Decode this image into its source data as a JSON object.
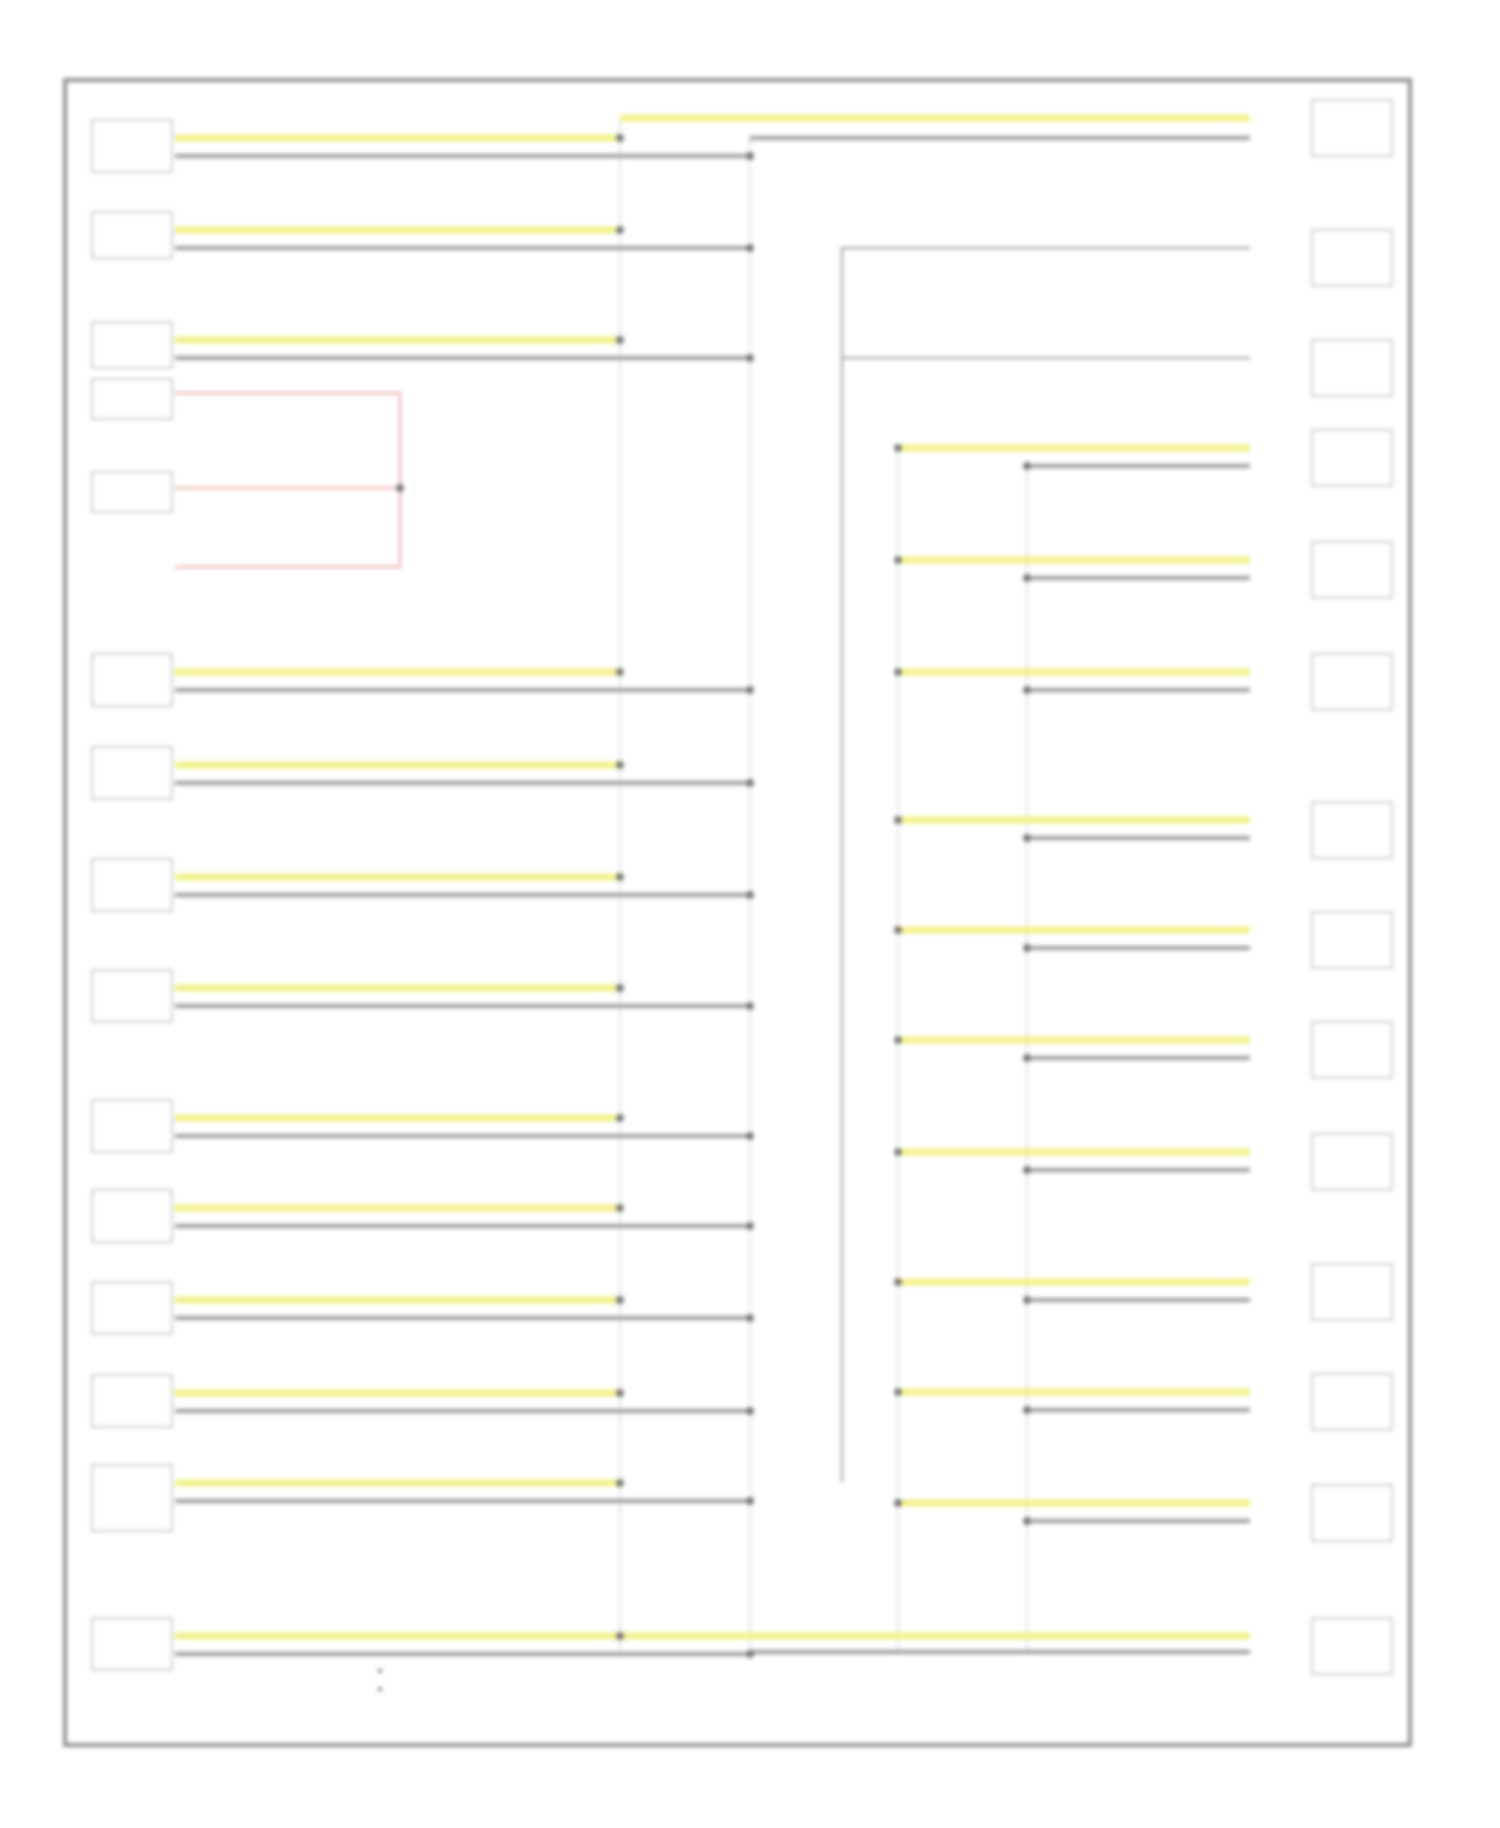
{
  "diagram": {
    "footer_code": "",
    "legend": [
      "",
      ""
    ],
    "left_modules": [
      {
        "name": "",
        "pins": [
          "",
          ""
        ]
      },
      {
        "name": "",
        "pins": [
          "",
          ""
        ]
      },
      {
        "name": "",
        "pins": [
          "",
          "",
          ""
        ]
      },
      {
        "name": "",
        "pins": [
          ""
        ]
      },
      {
        "name": "",
        "pins": [
          ""
        ]
      },
      {
        "name": "",
        "pins": [
          "",
          ""
        ]
      },
      {
        "name": "",
        "pins": [
          "",
          ""
        ]
      },
      {
        "name": "",
        "pins": [
          "",
          ""
        ]
      },
      {
        "name": "",
        "pins": [
          "",
          ""
        ]
      },
      {
        "name": "",
        "pins": [
          "",
          ""
        ]
      },
      {
        "name": "",
        "pins": [
          "",
          ""
        ]
      },
      {
        "name": "",
        "pins": [
          "",
          ""
        ]
      },
      {
        "name": "",
        "pins": [
          "",
          ""
        ]
      },
      {
        "name": "",
        "pins": [
          "",
          "",
          ""
        ]
      },
      {
        "name": "",
        "pins": [
          "",
          ""
        ]
      }
    ],
    "right_modules": [
      {
        "name": "",
        "pins": [
          "",
          ""
        ]
      },
      {
        "name": "",
        "pins": [
          ""
        ]
      },
      {
        "name": "",
        "pins": [
          ""
        ]
      },
      {
        "name": "",
        "pins": [
          "",
          ""
        ]
      },
      {
        "name": "",
        "pins": [
          "",
          ""
        ]
      },
      {
        "name": "",
        "pins": [
          "",
          ""
        ]
      },
      {
        "name": "",
        "pins": [
          "",
          ""
        ]
      },
      {
        "name": "",
        "pins": [
          "",
          ""
        ]
      },
      {
        "name": "",
        "pins": [
          "",
          ""
        ]
      },
      {
        "name": "",
        "pins": [
          "",
          ""
        ]
      },
      {
        "name": "",
        "pins": [
          "",
          ""
        ]
      },
      {
        "name": "",
        "pins": [
          "",
          ""
        ]
      },
      {
        "name": "",
        "pins": [
          "",
          ""
        ]
      },
      {
        "name": "",
        "pins": [
          "",
          ""
        ]
      }
    ],
    "colors": {
      "can_high": "#f2f28c",
      "can_low": "#9a9a9a",
      "power": "#e7a3a3",
      "frame": "#8f8f8f"
    }
  }
}
